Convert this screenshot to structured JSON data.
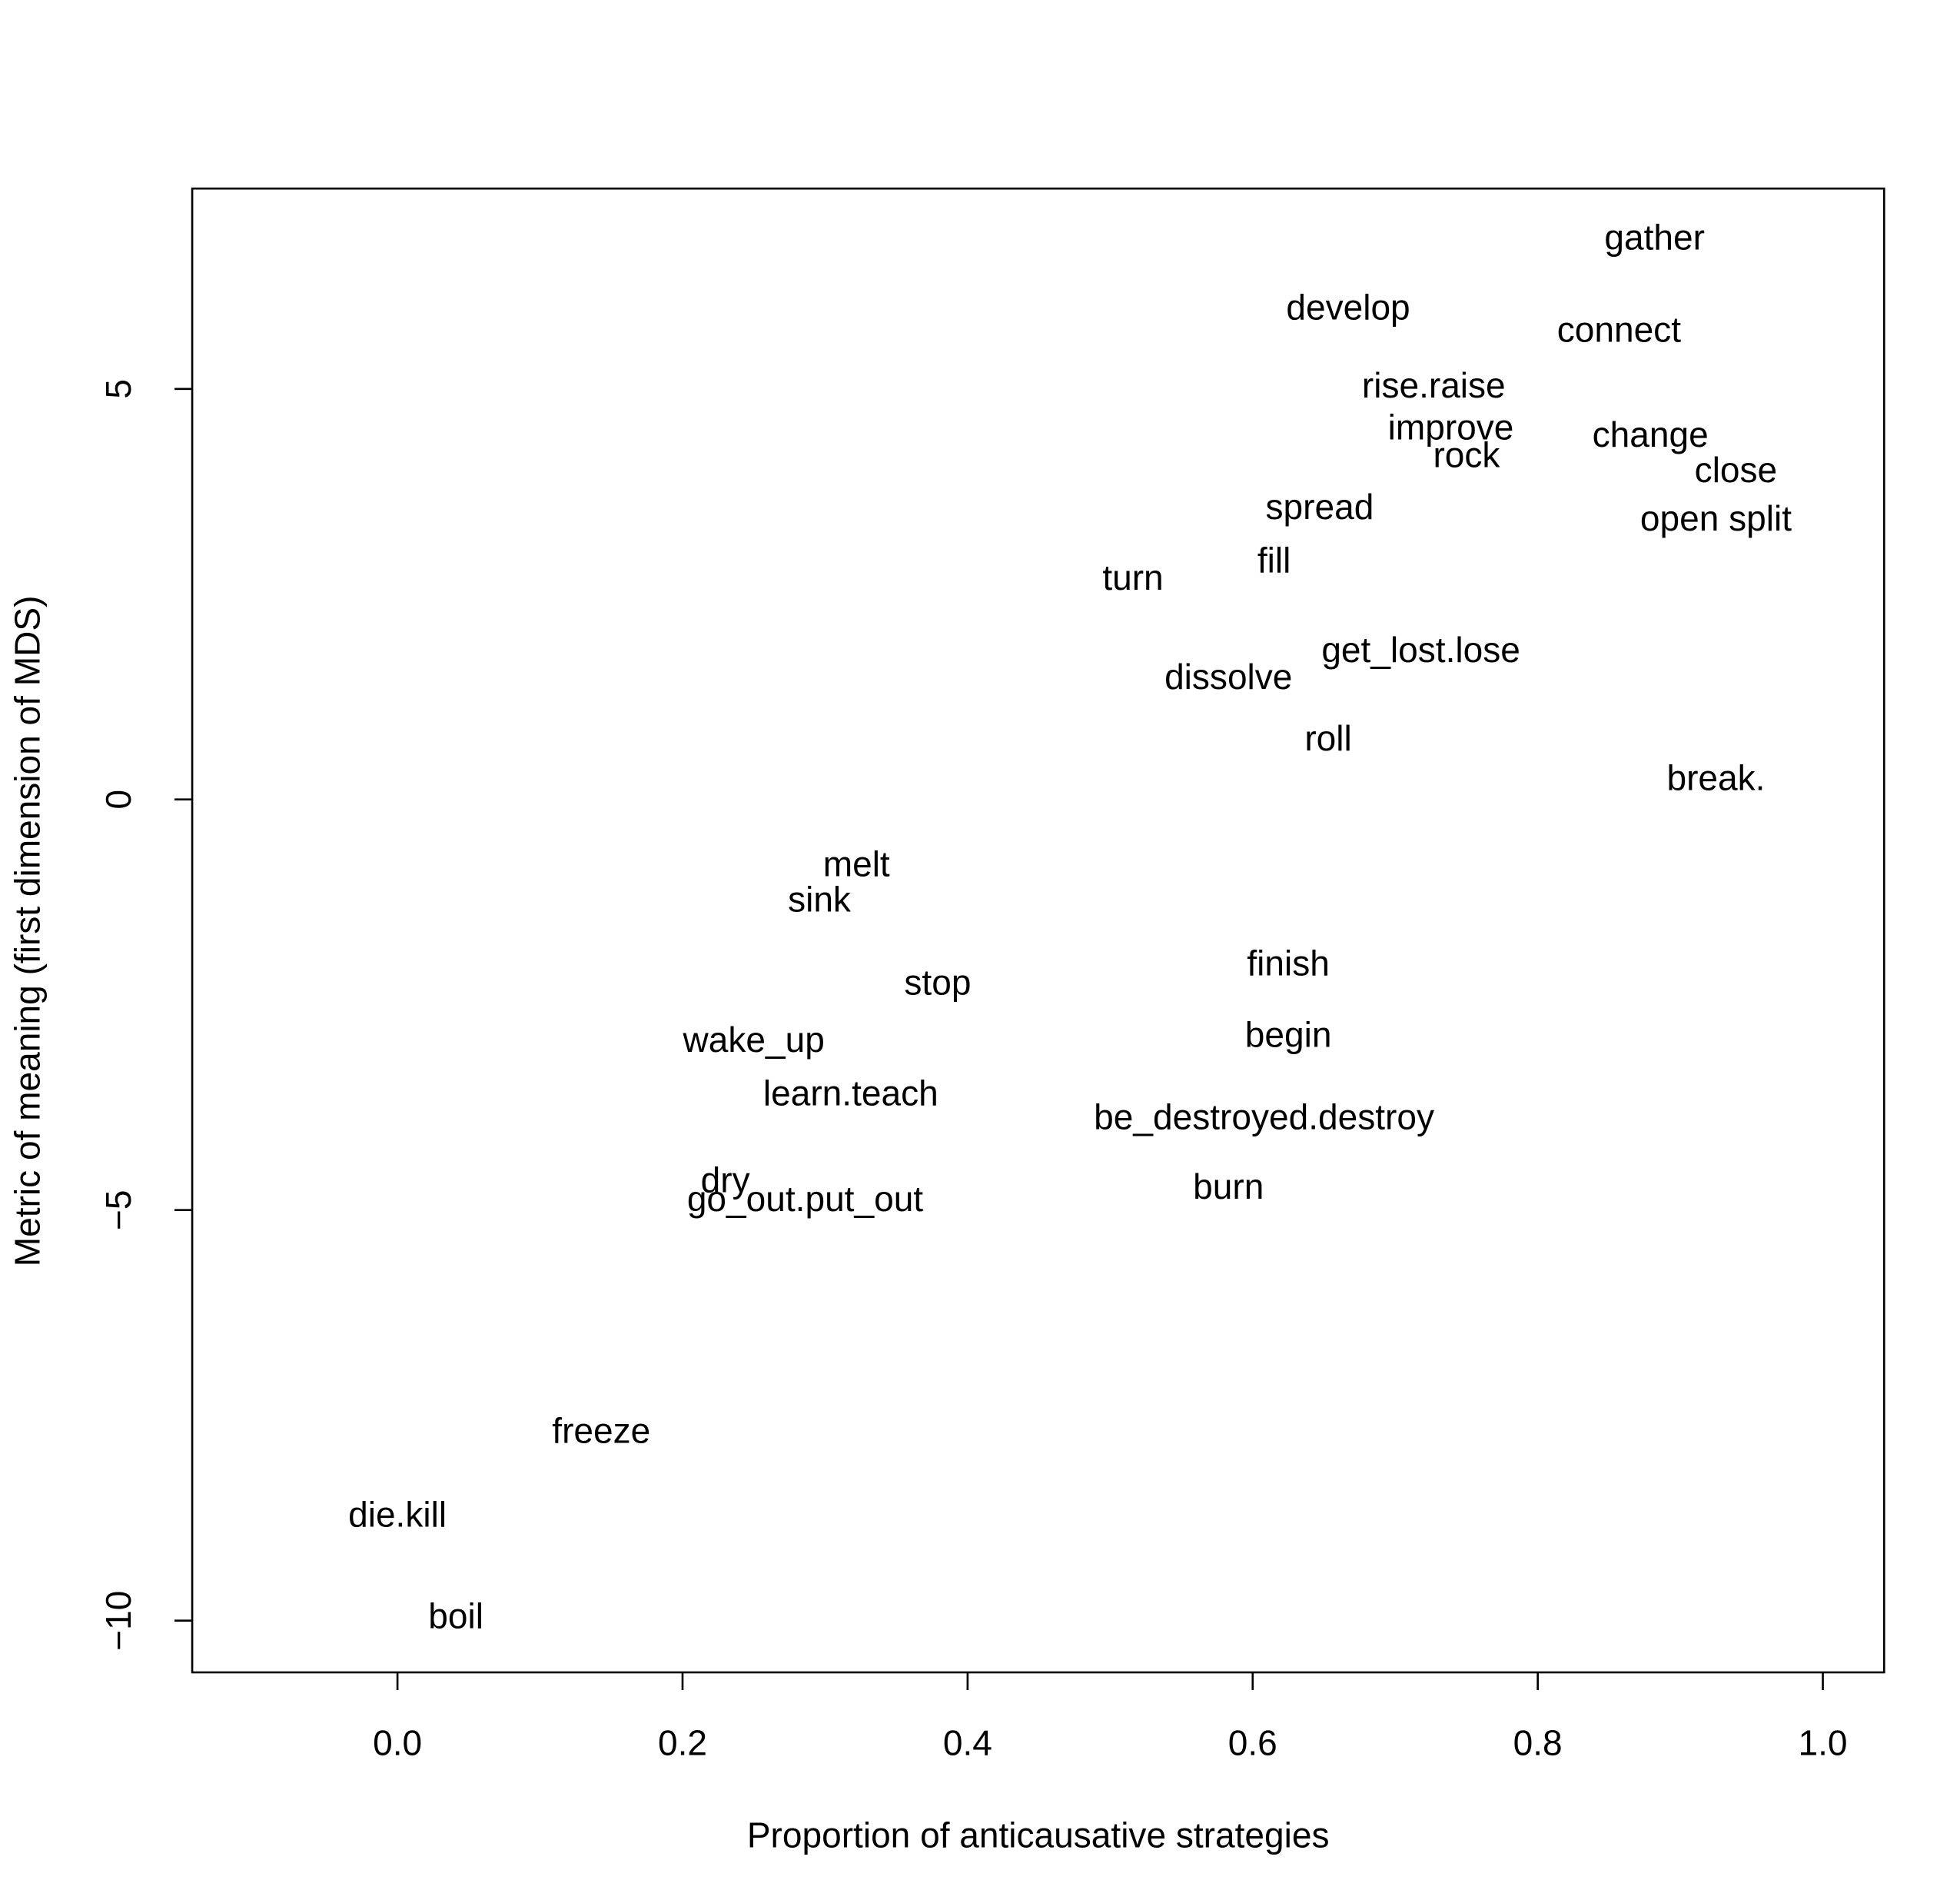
{
  "chart_data": {
    "type": "scatter",
    "xlabel": "Proportion of anticausative strategies",
    "ylabel": "Metric of meaning (first dimension of MDS)",
    "xlim": [
      -0.144,
      1.043
    ],
    "ylim": [
      -10.63,
      7.44
    ],
    "xticks": [
      {
        "value": 0,
        "label": "0.0"
      },
      0.2,
      0.4,
      0.6,
      0.8,
      {
        "value": 1,
        "label": "1.0"
      }
    ],
    "yticks": [
      {
        "value": -10,
        "label": "−10"
      },
      {
        "value": -5,
        "label": "−5"
      },
      0,
      5
    ],
    "labels": [
      "gather",
      "develop",
      "connect",
      "rise.raise",
      "improve",
      "rock",
      "change",
      "close",
      "open split",
      "spread",
      "fill",
      "turn",
      "get_lost.lose",
      "dissolve",
      "roll",
      "break.",
      "melt",
      "sink",
      "stop",
      "finish",
      "wake_up",
      "begin",
      "learn.teach",
      "be_destroyed.destroy",
      "dry",
      "go_out.put_out",
      "burn",
      "freeze",
      "die.kill",
      "boil"
    ],
    "x": [
      0.882,
      0.667,
      0.857,
      0.727,
      0.739,
      0.75,
      0.879,
      0.939,
      0.925,
      0.647,
      0.615,
      0.516,
      0.718,
      0.583,
      0.653,
      0.925,
      0.322,
      0.296,
      0.379,
      0.625,
      0.25,
      0.625,
      0.318,
      0.608,
      0.23,
      0.286,
      0.583,
      0.143,
      0.0,
      0.041
    ],
    "y": [
      6.81,
      5.96,
      5.69,
      5.01,
      4.5,
      4.16,
      4.41,
      3.98,
      3.39,
      3.53,
      2.88,
      2.67,
      1.79,
      1.46,
      0.71,
      0.23,
      -0.82,
      -1.25,
      -2.26,
      -2.03,
      -2.96,
      -2.9,
      -3.61,
      -3.9,
      -4.67,
      -4.9,
      -4.75,
      -7.72,
      -8.74,
      -9.98
    ]
  }
}
